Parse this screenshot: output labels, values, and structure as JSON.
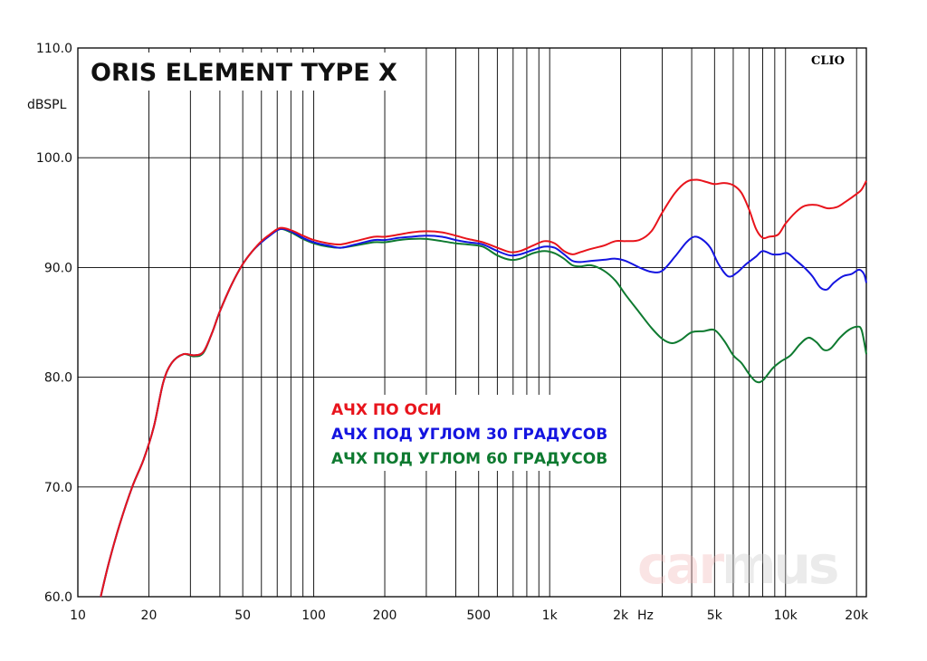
{
  "chart_data": {
    "type": "line",
    "title": "ORIS ELEMENT TYPE X",
    "brand_label": "CLIO",
    "watermark": {
      "car": "car",
      "mus": "mus"
    },
    "ylabel": "dBSPL",
    "xlabel": "Hz",
    "x_scale": "log",
    "xlim": [
      10,
      22000
    ],
    "ylim": [
      60,
      110
    ],
    "grid": true,
    "legend_position": "center",
    "y_ticks": [
      {
        "value": 60,
        "label": "60.0"
      },
      {
        "value": 70,
        "label": "70.0"
      },
      {
        "value": 80,
        "label": "80.0"
      },
      {
        "value": 90,
        "label": "90.0"
      },
      {
        "value": 100,
        "label": "100.0"
      },
      {
        "value": 110,
        "label": "110.0"
      }
    ],
    "x_ticks": [
      {
        "value": 10,
        "label": "10"
      },
      {
        "value": 20,
        "label": "20"
      },
      {
        "value": 50,
        "label": "50"
      },
      {
        "value": 100,
        "label": "100"
      },
      {
        "value": 200,
        "label": "200"
      },
      {
        "value": 500,
        "label": "500"
      },
      {
        "value": 1000,
        "label": "1k"
      },
      {
        "value": 2000,
        "label": "2k"
      },
      {
        "value": 5000,
        "label": "5k"
      },
      {
        "value": 10000,
        "label": "10k"
      },
      {
        "value": 20000,
        "label": "20k"
      }
    ],
    "series": [
      {
        "name": "АЧХ ПО ОСИ",
        "color": "#e8141c",
        "points": [
          [
            12.5,
            60
          ],
          [
            13.5,
            63
          ],
          [
            15,
            66.5
          ],
          [
            17,
            70
          ],
          [
            19,
            72.5
          ],
          [
            21,
            75.5
          ],
          [
            23,
            79.5
          ],
          [
            25,
            81.3
          ],
          [
            28,
            82.1
          ],
          [
            31,
            82
          ],
          [
            34,
            82.3
          ],
          [
            37,
            84
          ],
          [
            40,
            86
          ],
          [
            45,
            88.5
          ],
          [
            50,
            90.3
          ],
          [
            55,
            91.5
          ],
          [
            60,
            92.4
          ],
          [
            65,
            93
          ],
          [
            72,
            93.6
          ],
          [
            80,
            93.4
          ],
          [
            90,
            92.9
          ],
          [
            100,
            92.5
          ],
          [
            115,
            92.2
          ],
          [
            130,
            92.1
          ],
          [
            150,
            92.4
          ],
          [
            180,
            92.8
          ],
          [
            200,
            92.8
          ],
          [
            230,
            93
          ],
          [
            260,
            93.2
          ],
          [
            300,
            93.3
          ],
          [
            350,
            93.2
          ],
          [
            400,
            92.9
          ],
          [
            450,
            92.6
          ],
          [
            520,
            92.3
          ],
          [
            600,
            91.8
          ],
          [
            680,
            91.4
          ],
          [
            750,
            91.5
          ],
          [
            850,
            92
          ],
          [
            950,
            92.4
          ],
          [
            1050,
            92.2
          ],
          [
            1150,
            91.5
          ],
          [
            1250,
            91.2
          ],
          [
            1350,
            91.4
          ],
          [
            1500,
            91.7
          ],
          [
            1700,
            92
          ],
          [
            1900,
            92.4
          ],
          [
            2100,
            92.4
          ],
          [
            2400,
            92.5
          ],
          [
            2700,
            93.3
          ],
          [
            3000,
            95
          ],
          [
            3400,
            96.8
          ],
          [
            3800,
            97.8
          ],
          [
            4200,
            98
          ],
          [
            4600,
            97.8
          ],
          [
            5000,
            97.6
          ],
          [
            5500,
            97.7
          ],
          [
            6000,
            97.5
          ],
          [
            6500,
            96.8
          ],
          [
            7000,
            95.3
          ],
          [
            7500,
            93.5
          ],
          [
            8000,
            92.7
          ],
          [
            8500,
            92.8
          ],
          [
            9300,
            93
          ],
          [
            10000,
            94
          ],
          [
            11000,
            95
          ],
          [
            12000,
            95.6
          ],
          [
            13500,
            95.7
          ],
          [
            15000,
            95.4
          ],
          [
            16500,
            95.5
          ],
          [
            18000,
            96
          ],
          [
            20000,
            96.7
          ],
          [
            21000,
            97.1
          ],
          [
            22000,
            97.9
          ]
        ]
      },
      {
        "name": "АЧХ ПОД УГЛОМ 30 ГРАДУСОВ",
        "color": "#1414e0",
        "points": [
          [
            12.5,
            60
          ],
          [
            13.5,
            63
          ],
          [
            15,
            66.5
          ],
          [
            17,
            70
          ],
          [
            19,
            72.5
          ],
          [
            21,
            75.5
          ],
          [
            23,
            79.5
          ],
          [
            25,
            81.3
          ],
          [
            28,
            82.1
          ],
          [
            31,
            82
          ],
          [
            34,
            82.3
          ],
          [
            37,
            84
          ],
          [
            40,
            86
          ],
          [
            45,
            88.5
          ],
          [
            50,
            90.3
          ],
          [
            55,
            91.5
          ],
          [
            60,
            92.3
          ],
          [
            65,
            92.9
          ],
          [
            72,
            93.5
          ],
          [
            80,
            93.3
          ],
          [
            90,
            92.7
          ],
          [
            100,
            92.3
          ],
          [
            115,
            92
          ],
          [
            130,
            91.8
          ],
          [
            150,
            92.1
          ],
          [
            180,
            92.5
          ],
          [
            200,
            92.5
          ],
          [
            230,
            92.7
          ],
          [
            260,
            92.8
          ],
          [
            300,
            92.9
          ],
          [
            350,
            92.8
          ],
          [
            400,
            92.5
          ],
          [
            450,
            92.3
          ],
          [
            520,
            92.1
          ],
          [
            600,
            91.5
          ],
          [
            680,
            91.1
          ],
          [
            750,
            91.2
          ],
          [
            850,
            91.6
          ],
          [
            950,
            91.9
          ],
          [
            1050,
            91.8
          ],
          [
            1150,
            91.2
          ],
          [
            1250,
            90.6
          ],
          [
            1350,
            90.5
          ],
          [
            1500,
            90.6
          ],
          [
            1700,
            90.7
          ],
          [
            1900,
            90.8
          ],
          [
            2100,
            90.6
          ],
          [
            2400,
            90
          ],
          [
            2700,
            89.6
          ],
          [
            3000,
            89.7
          ],
          [
            3400,
            91
          ],
          [
            3800,
            92.3
          ],
          [
            4100,
            92.8
          ],
          [
            4400,
            92.6
          ],
          [
            4800,
            91.8
          ],
          [
            5200,
            90.3
          ],
          [
            5700,
            89.2
          ],
          [
            6200,
            89.5
          ],
          [
            6800,
            90.3
          ],
          [
            7500,
            91
          ],
          [
            8000,
            91.5
          ],
          [
            8800,
            91.2
          ],
          [
            9500,
            91.2
          ],
          [
            10200,
            91.3
          ],
          [
            11000,
            90.7
          ],
          [
            12000,
            90
          ],
          [
            13000,
            89.2
          ],
          [
            14000,
            88.2
          ],
          [
            15000,
            88
          ],
          [
            16000,
            88.6
          ],
          [
            17500,
            89.2
          ],
          [
            19000,
            89.4
          ],
          [
            20500,
            89.8
          ],
          [
            21500,
            89.4
          ],
          [
            22000,
            88.6
          ]
        ]
      },
      {
        "name": "АЧХ ПОД УГЛОМ 60 ГРАДУСОВ",
        "color": "#0e7a30",
        "points": [
          [
            12.5,
            60
          ],
          [
            13.5,
            63
          ],
          [
            15,
            66.5
          ],
          [
            17,
            70
          ],
          [
            19,
            72.5
          ],
          [
            21,
            75.5
          ],
          [
            23,
            79.5
          ],
          [
            25,
            81.3
          ],
          [
            28,
            82.1
          ],
          [
            31,
            81.9
          ],
          [
            34,
            82.2
          ],
          [
            37,
            84
          ],
          [
            40,
            86
          ],
          [
            45,
            88.5
          ],
          [
            50,
            90.3
          ],
          [
            55,
            91.5
          ],
          [
            60,
            92.3
          ],
          [
            65,
            92.9
          ],
          [
            72,
            93.5
          ],
          [
            80,
            93.2
          ],
          [
            90,
            92.6
          ],
          [
            100,
            92.2
          ],
          [
            115,
            91.9
          ],
          [
            130,
            91.8
          ],
          [
            150,
            92
          ],
          [
            180,
            92.3
          ],
          [
            200,
            92.3
          ],
          [
            230,
            92.5
          ],
          [
            260,
            92.6
          ],
          [
            300,
            92.6
          ],
          [
            350,
            92.4
          ],
          [
            400,
            92.2
          ],
          [
            450,
            92.1
          ],
          [
            520,
            91.9
          ],
          [
            600,
            91.1
          ],
          [
            680,
            90.7
          ],
          [
            750,
            90.8
          ],
          [
            850,
            91.3
          ],
          [
            950,
            91.5
          ],
          [
            1050,
            91.3
          ],
          [
            1150,
            90.8
          ],
          [
            1250,
            90.2
          ],
          [
            1350,
            90.1
          ],
          [
            1500,
            90.2
          ],
          [
            1700,
            89.7
          ],
          [
            1900,
            88.8
          ],
          [
            2100,
            87.5
          ],
          [
            2400,
            85.9
          ],
          [
            2700,
            84.5
          ],
          [
            3000,
            83.5
          ],
          [
            3300,
            83.1
          ],
          [
            3600,
            83.4
          ],
          [
            4000,
            84.1
          ],
          [
            4500,
            84.2
          ],
          [
            5000,
            84.3
          ],
          [
            5500,
            83.3
          ],
          [
            6000,
            82
          ],
          [
            6500,
            81.3
          ],
          [
            7000,
            80.3
          ],
          [
            7500,
            79.6
          ],
          [
            8000,
            79.7
          ],
          [
            8800,
            80.8
          ],
          [
            9500,
            81.4
          ],
          [
            10500,
            82
          ],
          [
            11500,
            83
          ],
          [
            12500,
            83.6
          ],
          [
            13500,
            83.2
          ],
          [
            14500,
            82.5
          ],
          [
            15500,
            82.6
          ],
          [
            17000,
            83.6
          ],
          [
            18500,
            84.3
          ],
          [
            20000,
            84.6
          ],
          [
            21000,
            84.3
          ],
          [
            22000,
            82.1
          ]
        ]
      }
    ]
  }
}
